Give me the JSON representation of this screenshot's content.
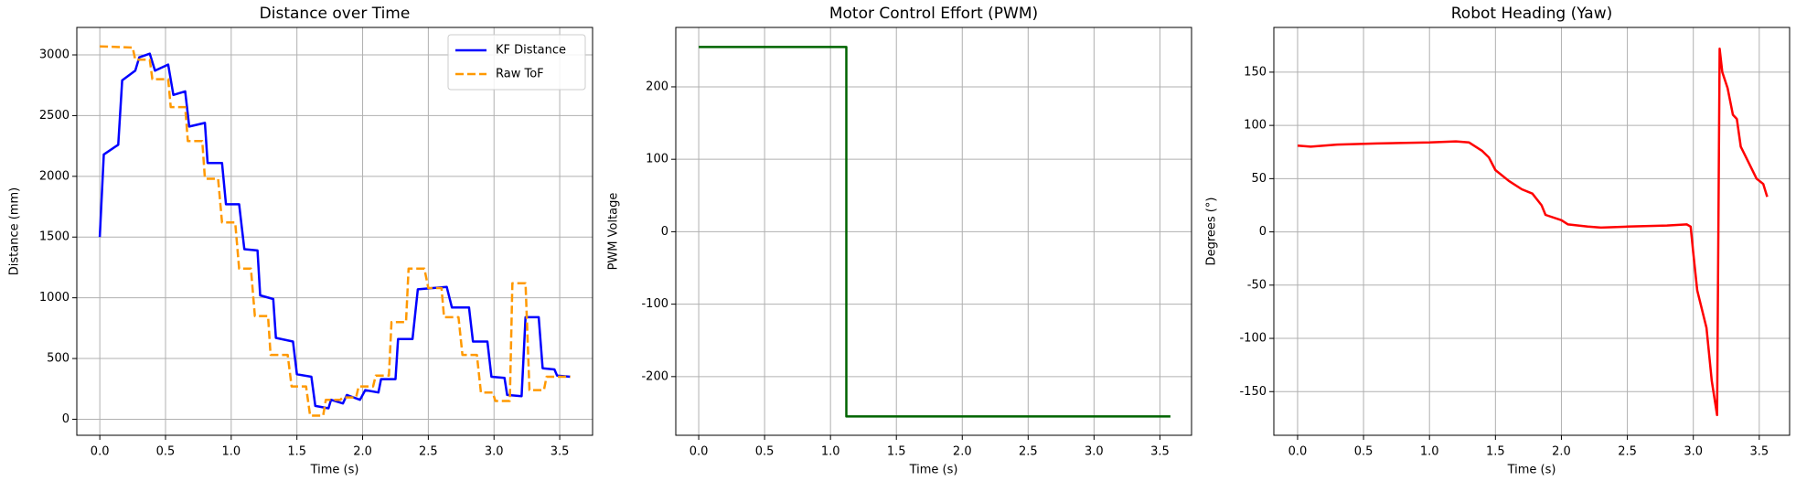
{
  "chart_data": [
    {
      "type": "line",
      "title": "Distance over Time",
      "xlabel": "Time (s)",
      "ylabel": "Distance (mm)",
      "xlim": [
        -0.175,
        3.75
      ],
      "ylim": [
        -132,
        3226
      ],
      "xticks": [
        {
          "value": 0,
          "label": "0.0"
        },
        0.5,
        {
          "value": 1,
          "label": "1.0"
        },
        1.5,
        {
          "value": 2,
          "label": "2.0"
        },
        2.5,
        {
          "value": 3,
          "label": "3.0"
        },
        3.5
      ],
      "yticks": [
        0,
        500,
        1000,
        1500,
        2000,
        2500,
        3000
      ],
      "grid": true,
      "legend": "upper right",
      "series": [
        {
          "name": "KF Distance",
          "color": "#0000ff",
          "dash": false,
          "x": [
            0,
            0.03,
            0.14,
            0.17,
            0.27,
            0.3,
            0.38,
            0.42,
            0.52,
            0.56,
            0.65,
            0.68,
            0.8,
            0.82,
            0.93,
            0.96,
            1.06,
            1.1,
            1.2,
            1.22,
            1.32,
            1.34,
            1.47,
            1.5,
            1.61,
            1.64,
            1.74,
            1.76,
            1.85,
            1.88,
            1.98,
            2.02,
            2.12,
            2.14,
            2.25,
            2.27,
            2.38,
            2.42,
            2.64,
            2.68,
            2.81,
            2.84,
            2.95,
            2.98,
            3.08,
            3.1,
            3.21,
            3.24,
            3.34,
            3.37,
            3.46,
            3.48,
            3.58
          ],
          "values": [
            1500,
            2180,
            2260,
            2790,
            2870,
            2980,
            3010,
            2870,
            2920,
            2670,
            2700,
            2410,
            2440,
            2110,
            2110,
            1770,
            1770,
            1400,
            1390,
            1020,
            990,
            670,
            640,
            370,
            350,
            110,
            90,
            160,
            130,
            200,
            160,
            240,
            220,
            330,
            330,
            660,
            660,
            1070,
            1090,
            920,
            920,
            640,
            640,
            350,
            340,
            200,
            190,
            840,
            840,
            420,
            410,
            360,
            350
          ]
        },
        {
          "name": "Raw ToF",
          "color": "#ff9900",
          "dash": true,
          "x": [
            0,
            0.25,
            0.27,
            0.38,
            0.4,
            0.52,
            0.54,
            0.65,
            0.67,
            0.78,
            0.8,
            0.9,
            0.93,
            1.03,
            1.06,
            1.15,
            1.18,
            1.28,
            1.3,
            1.43,
            1.46,
            1.57,
            1.6,
            1.7,
            1.72,
            1.83,
            1.85,
            1.95,
            1.97,
            2.08,
            2.1,
            2.2,
            2.22,
            2.33,
            2.35,
            2.47,
            2.5,
            2.6,
            2.62,
            2.73,
            2.76,
            2.87,
            2.9,
            2.99,
            3.01,
            3.12,
            3.14,
            3.24,
            3.27,
            3.38,
            3.4,
            3.58
          ],
          "values": [
            3070,
            3060,
            2960,
            2960,
            2800,
            2800,
            2570,
            2570,
            2290,
            2290,
            1980,
            1980,
            1620,
            1620,
            1240,
            1240,
            850,
            850,
            530,
            530,
            270,
            270,
            30,
            30,
            160,
            160,
            180,
            180,
            270,
            270,
            360,
            360,
            800,
            800,
            1240,
            1240,
            1080,
            1080,
            840,
            840,
            530,
            530,
            220,
            220,
            150,
            150,
            1120,
            1120,
            240,
            240,
            350,
            350
          ]
        }
      ]
    },
    {
      "type": "line",
      "title": "Motor Control Effort (PWM)",
      "xlabel": "Time (s)",
      "ylabel": "PWM Voltage",
      "xlim": [
        -0.174,
        3.74
      ],
      "ylim": [
        -281,
        282
      ],
      "xticks": [
        {
          "value": 0,
          "label": "0.0"
        },
        0.5,
        {
          "value": 1,
          "label": "1.0"
        },
        1.5,
        {
          "value": 2,
          "label": "2.0"
        },
        2.5,
        {
          "value": 3,
          "label": "3.0"
        },
        3.5
      ],
      "yticks": [
        -200,
        -100,
        0,
        100,
        200
      ],
      "grid": true,
      "series": [
        {
          "color": "#006400",
          "dash": false,
          "x": [
            0,
            1.12,
            1.12,
            3.58
          ],
          "values": [
            255,
            255,
            -255,
            -255
          ]
        }
      ]
    },
    {
      "type": "line",
      "title": "Robot Heading (Yaw)",
      "xlabel": "Time (s)",
      "ylabel": "Degrees (°)",
      "xlim": [
        -0.18,
        3.73
      ],
      "ylim": [
        -191,
        192
      ],
      "xticks": [
        {
          "value": 0,
          "label": "0.0"
        },
        0.5,
        {
          "value": 1,
          "label": "1.0"
        },
        1.5,
        {
          "value": 2,
          "label": "2.0"
        },
        2.5,
        {
          "value": 3,
          "label": "3.0"
        },
        3.5
      ],
      "yticks": [
        -150,
        -100,
        -50,
        0,
        50,
        100,
        150
      ],
      "grid": true,
      "series": [
        {
          "color": "#ff0000",
          "dash": false,
          "x": [
            0,
            0.1,
            0.2,
            0.3,
            0.6,
            1.0,
            1.2,
            1.3,
            1.4,
            1.45,
            1.5,
            1.6,
            1.7,
            1.78,
            1.85,
            1.88,
            2.0,
            2.05,
            2.2,
            2.3,
            2.5,
            2.8,
            2.95,
            2.98,
            3.0,
            3.03,
            3.1,
            3.14,
            3.18,
            3.2,
            3.22,
            3.26,
            3.3,
            3.33,
            3.36,
            3.42,
            3.48,
            3.53,
            3.56
          ],
          "values": [
            81,
            80,
            81,
            82,
            83,
            84,
            85,
            84,
            76,
            70,
            58,
            48,
            40,
            36,
            25,
            16,
            11,
            7,
            5,
            4,
            5,
            6,
            7,
            5,
            -20,
            -55,
            -90,
            -140,
            -172,
            172,
            150,
            135,
            110,
            106,
            80,
            65,
            50,
            45,
            33
          ]
        }
      ]
    }
  ]
}
